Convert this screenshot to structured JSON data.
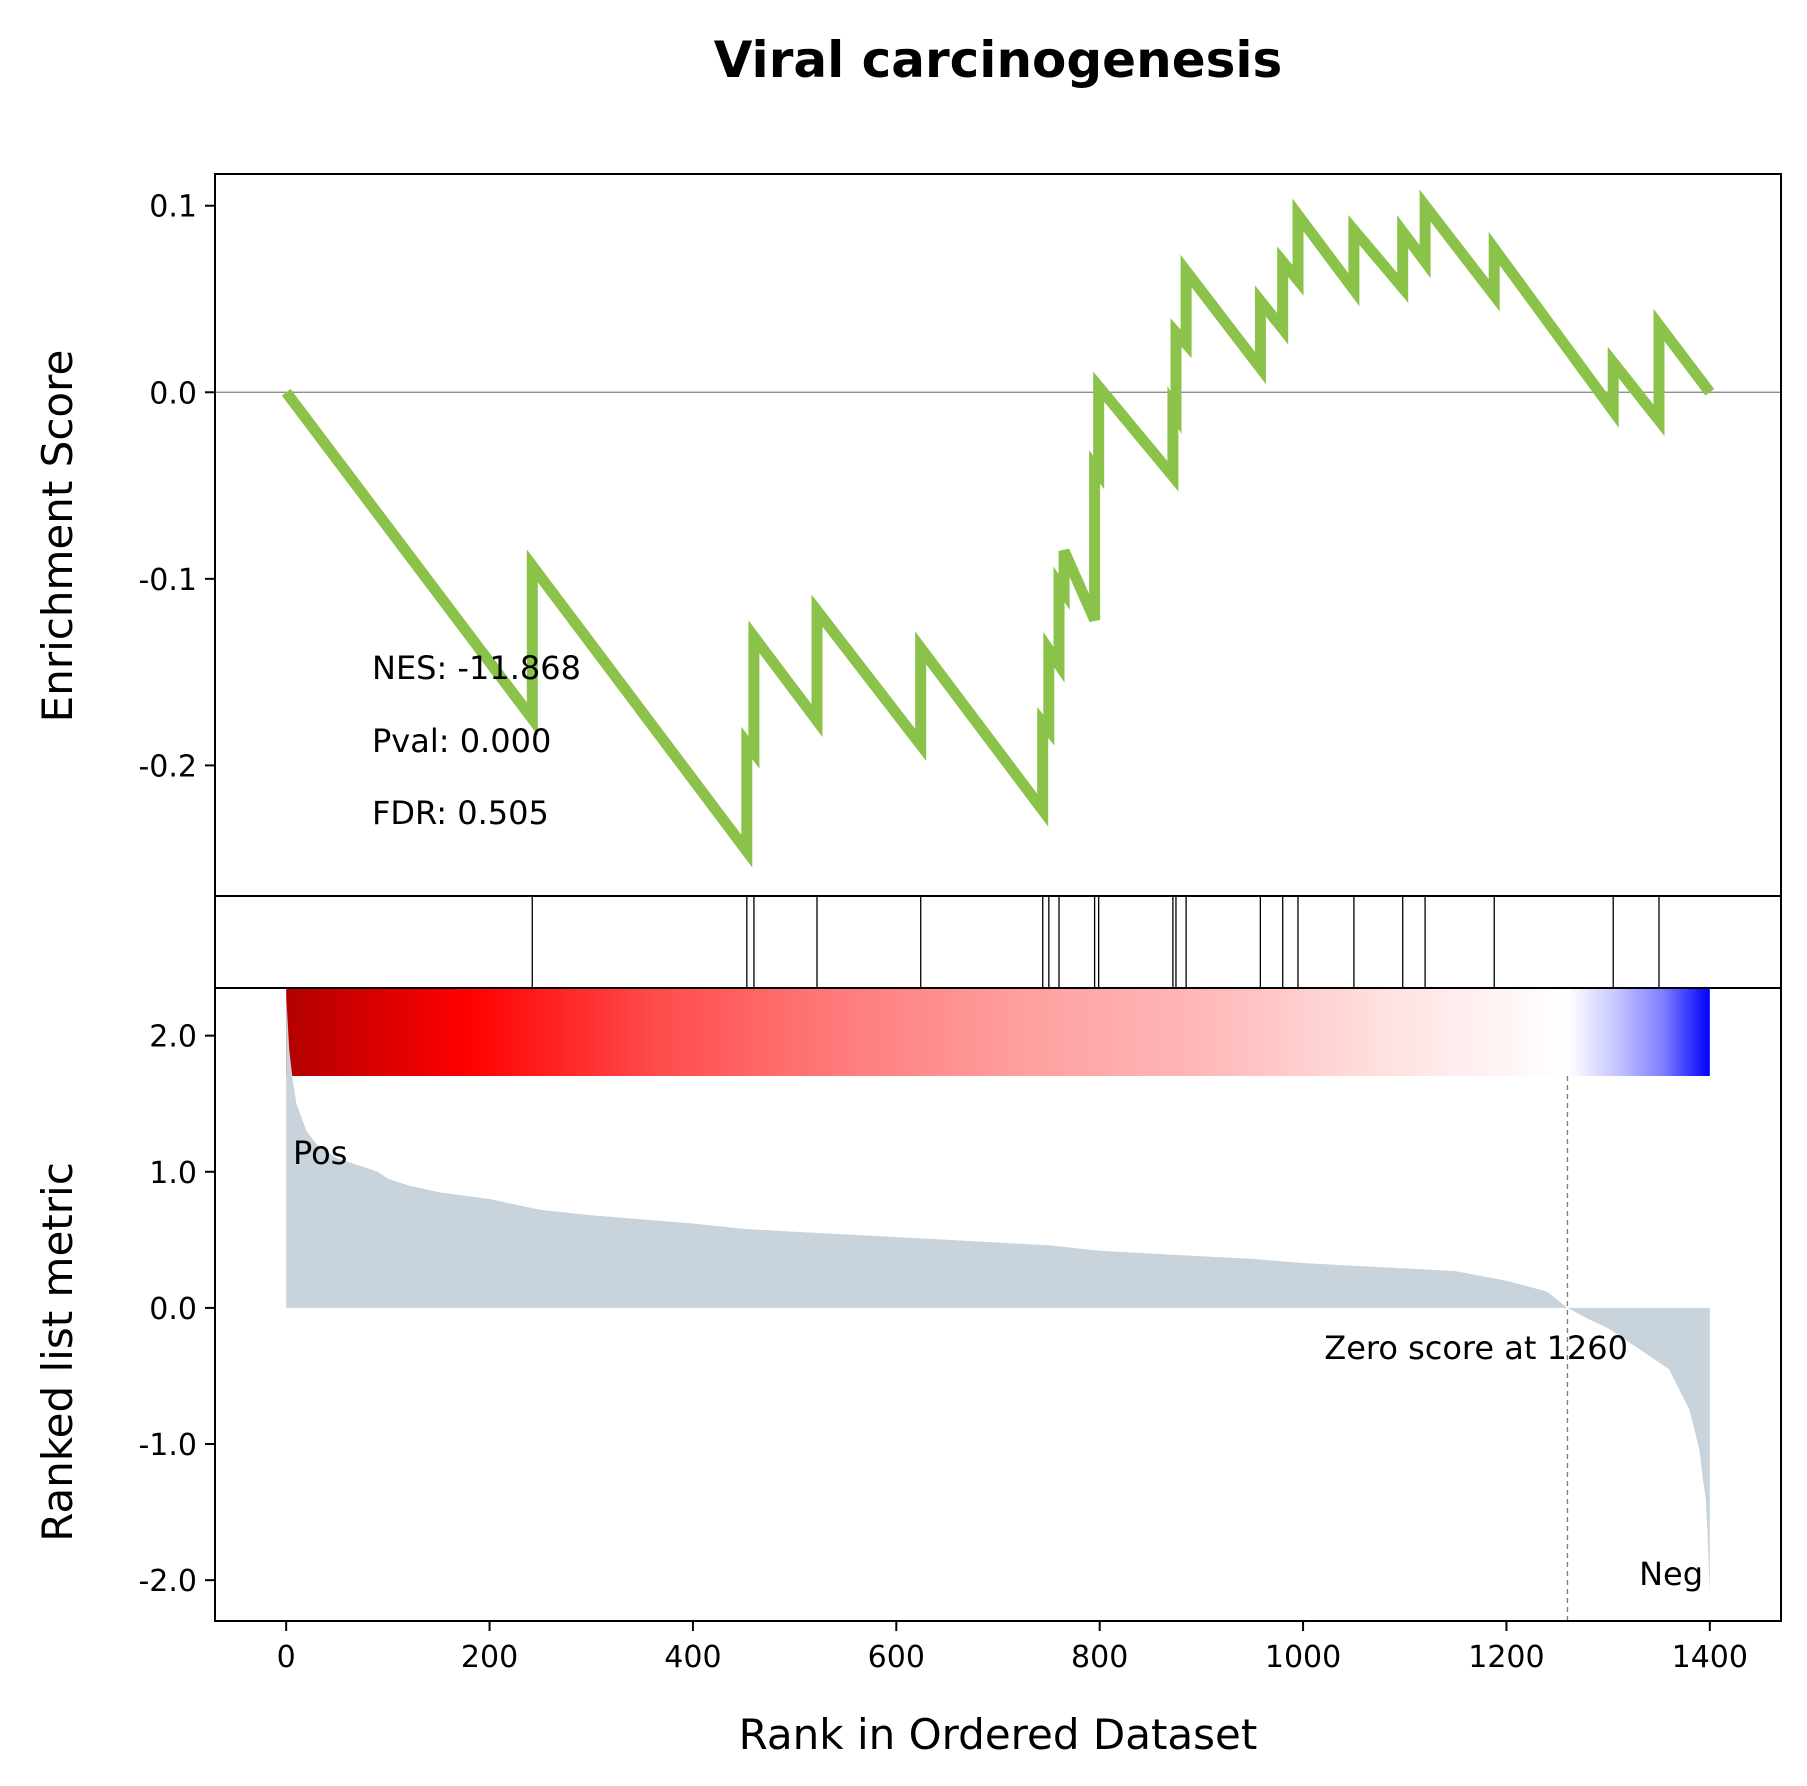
{
  "chart_data": {
    "type": "line",
    "title": "Viral carcinogenesis",
    "xlabel": "Rank in Ordered Dataset",
    "xlim": [
      -70,
      1470
    ],
    "x_ticks": [
      0,
      200,
      400,
      600,
      800,
      1000,
      1200,
      1400
    ],
    "x_tick_labels": [
      "0",
      "200",
      "400",
      "600",
      "800",
      "1000",
      "1200",
      "1400"
    ],
    "colors": {
      "es_line": "#8bc34a",
      "ranked_fill": "#c9d3dc",
      "pos_label": "#ff0000",
      "neg_label": "#0000ff",
      "zero_line": "#808080",
      "gradient": [
        "#b30000",
        "#ff0000",
        "#ff4a4a",
        "#ff7a7a",
        "#ff9e9e",
        "#ffb8b8",
        "#ffe0e0",
        "#ffffff",
        "#c8c8ff",
        "#8080ff",
        "#0000ff"
      ]
    },
    "enrichment_panel": {
      "ylabel": "Enrichment Score",
      "ylim": [
        -0.27,
        0.117
      ],
      "y_ticks": [
        0.1,
        0.0,
        -0.1,
        -0.2
      ],
      "y_tick_labels": [
        "0.1",
        "0.0",
        "-0.1",
        "-0.2"
      ],
      "series": [
        {
          "x": [
            0,
            242,
            242,
            453,
            453,
            460,
            460,
            522,
            522,
            624,
            624,
            744,
            744,
            750,
            750,
            760,
            760,
            765,
            765,
            795,
            795,
            799,
            799,
            872,
            872,
            875,
            875,
            885,
            885,
            958,
            958,
            980,
            980,
            995,
            995,
            1050,
            1050,
            1098,
            1098,
            1120,
            1120,
            1188,
            1188,
            1305,
            1305,
            1350,
            1350,
            1400
          ],
          "y": [
            0.0,
            -0.175,
            -0.093,
            -0.246,
            -0.188,
            -0.193,
            -0.131,
            -0.176,
            -0.117,
            -0.189,
            -0.137,
            -0.224,
            -0.177,
            -0.181,
            -0.138,
            -0.146,
            -0.103,
            -0.107,
            -0.085,
            -0.122,
            -0.04,
            -0.043,
            0.003,
            -0.045,
            -0.008,
            -0.011,
            0.032,
            0.026,
            0.065,
            0.013,
            0.049,
            0.034,
            0.07,
            0.06,
            0.095,
            0.055,
            0.087,
            0.056,
            0.086,
            0.07,
            0.1,
            0.052,
            0.077,
            -0.01,
            0.016,
            -0.015,
            0.036,
            0.0
          ]
        }
      ],
      "annotations": [
        "NES: -11.868",
        "Pval: 0.000",
        "FDR: 0.505"
      ]
    },
    "hits_panel": {
      "hit_ranks": [
        242,
        453,
        460,
        522,
        624,
        744,
        750,
        760,
        795,
        799,
        872,
        875,
        885,
        958,
        980,
        995,
        1050,
        1098,
        1120,
        1188,
        1305,
        1350
      ]
    },
    "ranked_panel": {
      "ylabel": "Ranked list metric",
      "ylim": [
        -2.3,
        2.35
      ],
      "y_ticks": [
        2.0,
        1.0,
        0.0,
        -1.0,
        -2.0
      ],
      "y_tick_labels": [
        "2.0",
        "1.0",
        "0.0",
        "-1.0",
        "-2.0"
      ],
      "series": [
        {
          "x": [
            0,
            3,
            6,
            10,
            15,
            20,
            30,
            40,
            50,
            70,
            90,
            100,
            120,
            150,
            200,
            250,
            300,
            350,
            400,
            450,
            500,
            550,
            600,
            650,
            700,
            750,
            800,
            850,
            900,
            950,
            1000,
            1050,
            1100,
            1150,
            1200,
            1240,
            1260,
            1280,
            1300,
            1320,
            1340,
            1360,
            1370,
            1380,
            1385,
            1390,
            1393,
            1396,
            1398,
            1400
          ],
          "y": [
            2.3,
            1.9,
            1.7,
            1.5,
            1.4,
            1.3,
            1.2,
            1.15,
            1.1,
            1.05,
            1.0,
            0.95,
            0.9,
            0.85,
            0.8,
            0.72,
            0.68,
            0.65,
            0.62,
            0.58,
            0.56,
            0.54,
            0.52,
            0.5,
            0.48,
            0.46,
            0.42,
            0.4,
            0.38,
            0.36,
            0.33,
            0.31,
            0.29,
            0.27,
            0.2,
            0.12,
            0.0,
            -0.08,
            -0.15,
            -0.25,
            -0.35,
            -0.45,
            -0.6,
            -0.75,
            -0.9,
            -1.05,
            -1.25,
            -1.4,
            -1.7,
            -2.1
          ]
        }
      ],
      "zero_cross_rank": 1260,
      "zero_label": "Zero score at 1260",
      "pos_label": "Pos",
      "neg_label": "Neg"
    }
  }
}
